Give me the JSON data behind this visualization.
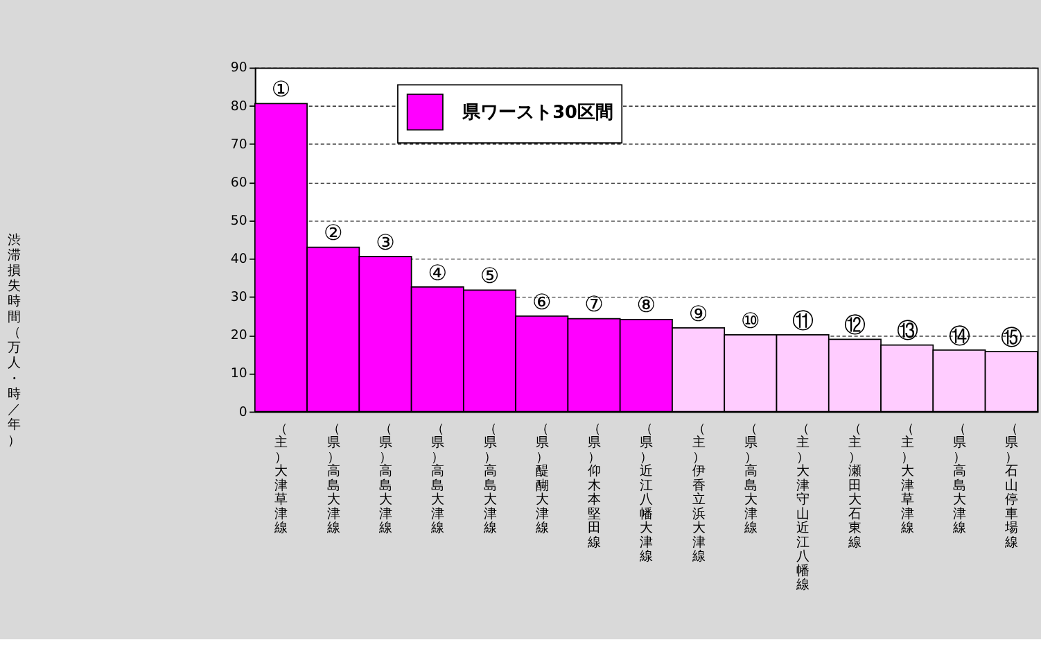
{
  "chart_data": {
    "type": "bar",
    "ylabel": "渋滞損失時間（万人・時／年）",
    "categories": [
      "（主）大津草津線",
      "（県）高島大津線",
      "（県）高島大津線",
      "（県）高島大津線",
      "（県）高島大津線",
      "（県）醍醐大津線",
      "（県）仰木本堅田線",
      "（県）近江八幡大津線",
      "（主）伊香立浜大津線",
      "（県）高島大津線",
      "（主）大津守山近江八幡線",
      "（主）瀬田大石東線",
      "（主）大津草津線",
      "（県）高島大津線",
      "（県）石山停車場線"
    ],
    "series": [
      {
        "name": "県ワースト30区間",
        "color": "#ff00ff",
        "values": [
          80.6,
          43.0,
          40.6,
          32.6,
          31.8,
          25.0,
          24.3,
          24.1,
          null,
          null,
          null,
          null,
          null,
          null,
          null
        ]
      },
      {
        "color": "#ffccff",
        "values": [
          null,
          null,
          null,
          null,
          null,
          null,
          null,
          null,
          21.9,
          20.1,
          20.1,
          18.9,
          17.4,
          16.1,
          15.7
        ]
      }
    ],
    "value_labels": [
      "①",
      "②",
      "③",
      "④",
      "⑤",
      "⑥",
      "⑦",
      "⑧",
      "⑨",
      "⑩",
      "⑪",
      "⑫",
      "⑬",
      "⑭",
      "⑮"
    ],
    "ylim": [
      0,
      90
    ],
    "yticks": [
      0,
      10,
      20,
      30,
      40,
      50,
      60,
      70,
      80,
      90
    ],
    "grid": "y",
    "legend": "top left"
  }
}
